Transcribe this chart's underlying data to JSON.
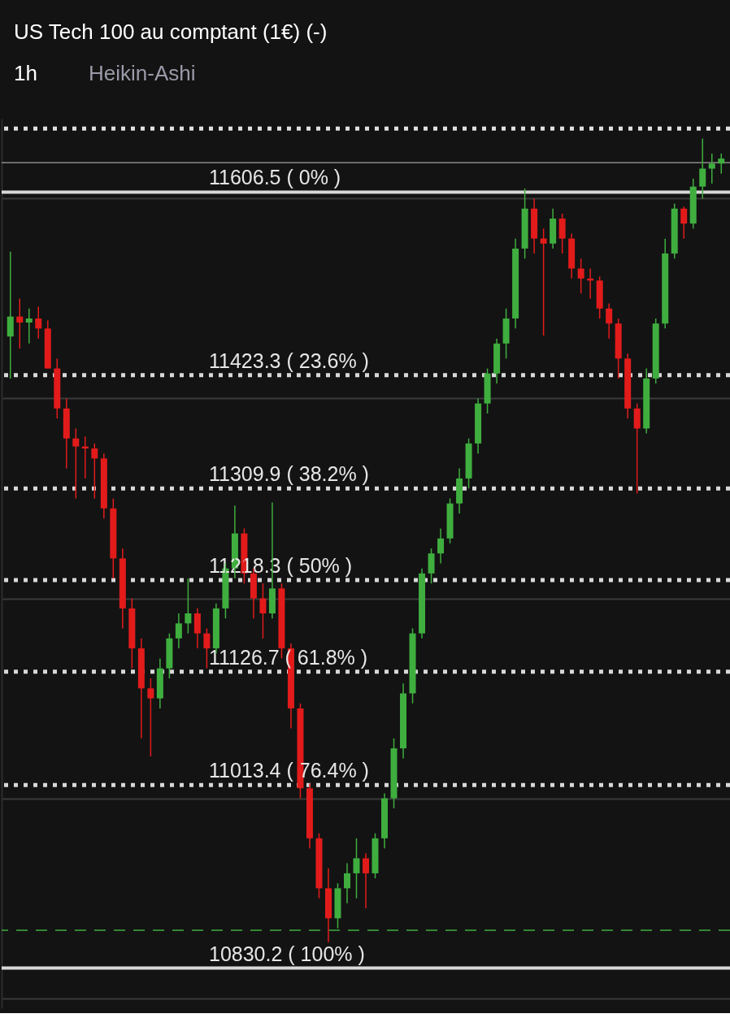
{
  "chart_data": {
    "type": "candlestick",
    "title": "US Tech 100 au comptant (1€) (-)",
    "subtitle": "Heikin-Ashi",
    "annotations": [
      "1h"
    ],
    "categories": [
      null,
      null,
      null,
      null,
      null,
      null,
      null,
      null,
      null,
      null,
      null,
      null,
      null,
      null,
      null,
      null,
      null,
      null,
      null,
      null,
      null,
      null,
      null,
      null,
      null,
      null,
      null,
      null,
      null,
      null,
      null,
      null,
      null,
      null,
      null,
      null,
      null,
      null,
      null,
      null,
      null,
      null,
      null,
      null,
      null,
      null,
      null,
      null,
      null,
      null,
      null,
      null,
      null,
      null,
      null,
      null,
      null,
      null,
      null,
      null,
      null,
      null,
      null,
      null,
      null,
      null,
      null,
      null,
      null,
      null,
      null,
      null,
      null,
      null,
      null,
      null,
      null
    ],
    "ohlc": [
      [
        11462,
        11547,
        11420,
        11482
      ],
      [
        11482,
        11500,
        11450,
        11476
      ],
      [
        11476,
        11490,
        11455,
        11480
      ],
      [
        11480,
        11492,
        11460,
        11470
      ],
      [
        11470,
        11478,
        11430,
        11430
      ],
      [
        11430,
        11440,
        11380,
        11390
      ],
      [
        11390,
        11400,
        11330,
        11360
      ],
      [
        11360,
        11370,
        11300,
        11352
      ],
      [
        11352,
        11362,
        11320,
        11350
      ],
      [
        11350,
        11355,
        11300,
        11340
      ],
      [
        11340,
        11345,
        11280,
        11290
      ],
      [
        11290,
        11300,
        11220,
        11240
      ],
      [
        11240,
        11250,
        11170,
        11190
      ],
      [
        11190,
        11200,
        11130,
        11150
      ],
      [
        11150,
        11160,
        11060,
        11110
      ],
      [
        11110,
        11120,
        11042,
        11100
      ],
      [
        11100,
        11140,
        11090,
        11130
      ],
      [
        11130,
        11165,
        11120,
        11160
      ],
      [
        11160,
        11185,
        11150,
        11175
      ],
      [
        11175,
        11220,
        11165,
        11185
      ],
      [
        11185,
        11190,
        11150,
        11165
      ],
      [
        11165,
        11170,
        11130,
        11150
      ],
      [
        11150,
        11195,
        11145,
        11190
      ],
      [
        11190,
        11235,
        11180,
        11230
      ],
      [
        11230,
        11293,
        11220,
        11265
      ],
      [
        11265,
        11270,
        11215,
        11225
      ],
      [
        11225,
        11230,
        11180,
        11200
      ],
      [
        11200,
        11215,
        11160,
        11185
      ],
      [
        11185,
        11296,
        11180,
        11210
      ],
      [
        11210,
        11215,
        11140,
        11150
      ],
      [
        11150,
        11155,
        11070,
        11090
      ],
      [
        11090,
        11095,
        11000,
        11010
      ],
      [
        11010,
        11015,
        10950,
        10960
      ],
      [
        10960,
        10965,
        10900,
        10910
      ],
      [
        10910,
        10930,
        10856,
        10880
      ],
      [
        10880,
        10915,
        10870,
        10910
      ],
      [
        10910,
        10935,
        10895,
        10925
      ],
      [
        10925,
        10960,
        10900,
        10940
      ],
      [
        10940,
        10945,
        10890,
        10925
      ],
      [
        10925,
        10965,
        10920,
        10960
      ],
      [
        10960,
        11005,
        10950,
        11000
      ],
      [
        11000,
        11060,
        10990,
        11050
      ],
      [
        11050,
        11115,
        11040,
        11105
      ],
      [
        11105,
        11170,
        11095,
        11165
      ],
      [
        11165,
        11230,
        11160,
        11225
      ],
      [
        11225,
        11250,
        11215,
        11245
      ],
      [
        11245,
        11270,
        11235,
        11260
      ],
      [
        11260,
        11300,
        11255,
        11295
      ],
      [
        11295,
        11330,
        11285,
        11320
      ],
      [
        11320,
        11360,
        11310,
        11355
      ],
      [
        11355,
        11400,
        11345,
        11395
      ],
      [
        11395,
        11430,
        11385,
        11425
      ],
      [
        11425,
        11460,
        11415,
        11455
      ],
      [
        11455,
        11490,
        11440,
        11480
      ],
      [
        11480,
        11560,
        11470,
        11550
      ],
      [
        11550,
        11610,
        11540,
        11590
      ],
      [
        11590,
        11600,
        11545,
        11560
      ],
      [
        11560,
        11570,
        11463,
        11555
      ],
      [
        11555,
        11590,
        11550,
        11580
      ],
      [
        11580,
        11585,
        11545,
        11560
      ],
      [
        11560,
        11565,
        11520,
        11530
      ],
      [
        11530,
        11540,
        11505,
        11520
      ],
      [
        11520,
        11530,
        11500,
        11518
      ],
      [
        11518,
        11522,
        11480,
        11490
      ],
      [
        11490,
        11495,
        11460,
        11475
      ],
      [
        11475,
        11480,
        11420,
        11440
      ],
      [
        11440,
        11445,
        11380,
        11390
      ],
      [
        11390,
        11395,
        11305,
        11370
      ],
      [
        11370,
        11430,
        11365,
        11420
      ],
      [
        11420,
        11480,
        11415,
        11475
      ],
      [
        11475,
        11560,
        11470,
        11545
      ],
      [
        11545,
        11595,
        11540,
        11590
      ],
      [
        11590,
        11592,
        11560,
        11575
      ],
      [
        11575,
        11620,
        11570,
        11612
      ],
      [
        11612,
        11660,
        11600,
        11630
      ],
      [
        11630,
        11645,
        11615,
        11635
      ],
      [
        11635,
        11645,
        11625,
        11640
      ]
    ],
    "colors": [
      "#3fae3f",
      "#e21b1b",
      "#3fae3f",
      "#e21b1b",
      "#e21b1b",
      "#e21b1b",
      "#e21b1b",
      "#e21b1b",
      "#e21b1b",
      "#e21b1b",
      "#e21b1b",
      "#e21b1b",
      "#e21b1b",
      "#e21b1b",
      "#e21b1b",
      "#e21b1b",
      "#3fae3f",
      "#3fae3f",
      "#3fae3f",
      "#3fae3f",
      "#e21b1b",
      "#e21b1b",
      "#3fae3f",
      "#3fae3f",
      "#3fae3f",
      "#e21b1b",
      "#e21b1b",
      "#e21b1b",
      "#3fae3f",
      "#e21b1b",
      "#e21b1b",
      "#e21b1b",
      "#e21b1b",
      "#e21b1b",
      "#e21b1b",
      "#3fae3f",
      "#3fae3f",
      "#3fae3f",
      "#e21b1b",
      "#3fae3f",
      "#3fae3f",
      "#3fae3f",
      "#3fae3f",
      "#3fae3f",
      "#3fae3f",
      "#3fae3f",
      "#3fae3f",
      "#3fae3f",
      "#3fae3f",
      "#3fae3f",
      "#3fae3f",
      "#3fae3f",
      "#3fae3f",
      "#3fae3f",
      "#3fae3f",
      "#3fae3f",
      "#e21b1b",
      "#e21b1b",
      "#3fae3f",
      "#e21b1b",
      "#e21b1b",
      "#e21b1b",
      "#e21b1b",
      "#e21b1b",
      "#e21b1b",
      "#e21b1b",
      "#e21b1b",
      "#e21b1b",
      "#3fae3f",
      "#3fae3f",
      "#3fae3f",
      "#3fae3f",
      "#e21b1b",
      "#3fae3f",
      "#3fae3f",
      "#3fae3f",
      "#3fae3f"
    ],
    "ylim": [
      10790,
      11680
    ],
    "yticks": [
      {
        "value": 10800,
        "label": null
      },
      {
        "value": 11000,
        "label": null
      },
      {
        "value": 11200,
        "label": null
      },
      {
        "value": 11400,
        "label": null
      },
      {
        "value": 11600,
        "label": null
      }
    ],
    "tick_labels": false,
    "grid": "y",
    "ref_lines": [
      {
        "axis": "y",
        "value": 11670,
        "label": null,
        "color": "#e0e0e0",
        "line_style": "dotted"
      },
      {
        "axis": "y",
        "value": 11636,
        "label": null,
        "color": "#8a8a8a",
        "line_style": "solid"
      },
      {
        "axis": "y",
        "value": 11606.5,
        "label": "11606.5 ( 0% )",
        "color": "#d8d8d8",
        "line_style": "solid"
      },
      {
        "axis": "y",
        "value": 11423.3,
        "label": "11423.3 ( 23.6% )",
        "color": "#d8d8d8",
        "line_style": "dotted"
      },
      {
        "axis": "y",
        "value": 11309.9,
        "label": "11309.9 ( 38.2% )",
        "color": "#d8d8d8",
        "line_style": "dotted"
      },
      {
        "axis": "y",
        "value": 11218.3,
        "label": "11218.3 ( 50% )",
        "color": "#d8d8d8",
        "line_style": "dotted"
      },
      {
        "axis": "y",
        "value": 11126.7,
        "label": "11126.7 ( 61.8% )",
        "color": "#d8d8d8",
        "line_style": "dotted"
      },
      {
        "axis": "y",
        "value": 11013.4,
        "label": "11013.4 ( 76.4% )",
        "color": "#d8d8d8",
        "line_style": "dotted"
      },
      {
        "axis": "y",
        "value": 10868,
        "label": null,
        "color": "#3fae3f",
        "line_style": "dashed"
      },
      {
        "axis": "y",
        "value": 10830.2,
        "label": "10830.2 ( 100% )",
        "color": "#d8d8d8",
        "line_style": "solid"
      }
    ]
  }
}
